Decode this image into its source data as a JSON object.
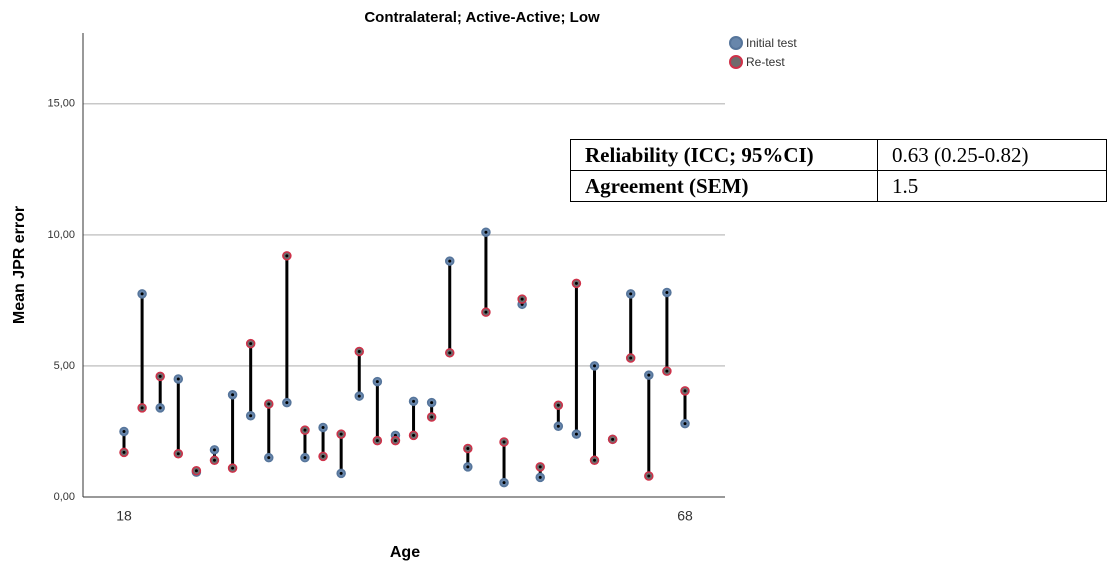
{
  "chart_data": {
    "type": "dumbbell",
    "title": "Contralateral; Active-Active; Low",
    "x_label": "Age",
    "y_label": "Mean JPR error",
    "categories": [
      "18",
      null,
      null,
      null,
      null,
      null,
      null,
      null,
      null,
      null,
      null,
      null,
      null,
      null,
      null,
      null,
      null,
      null,
      null,
      null,
      null,
      null,
      null,
      null,
      null,
      null,
      null,
      null,
      null,
      null,
      null,
      "68"
    ],
    "series": [
      {
        "name": "Initial test",
        "color": "#6886ab",
        "edgecolor": "#56759b",
        "values": [
          2.5,
          7.75,
          3.4,
          4.5,
          0.95,
          1.8,
          3.9,
          3.1,
          1.5,
          3.6,
          1.5,
          2.65,
          0.9,
          3.85,
          4.4,
          2.35,
          3.65,
          3.6,
          9.0,
          1.15,
          10.1,
          0.55,
          7.35,
          0.75,
          2.7,
          2.4,
          5.0,
          2.2,
          7.75,
          4.65,
          7.8,
          2.8
        ]
      },
      {
        "name": "Re-test",
        "color": "#6f6b6d",
        "edgecolor": "#cf3149",
        "values": [
          1.7,
          3.4,
          4.6,
          1.65,
          1.0,
          1.4,
          1.1,
          5.85,
          3.55,
          9.2,
          2.55,
          1.55,
          2.4,
          5.55,
          2.15,
          2.15,
          2.35,
          3.05,
          5.5,
          1.85,
          7.05,
          2.1,
          7.55,
          1.15,
          3.5,
          8.15,
          1.4,
          2.2,
          5.3,
          0.8,
          4.8,
          4.05
        ]
      }
    ],
    "ylim": [
      0,
      17.7
    ],
    "yticks": [
      {
        "value": 0,
        "label": "0,00"
      },
      {
        "value": 5,
        "label": "5,00"
      },
      {
        "value": 10,
        "label": "10,00"
      },
      {
        "value": 15,
        "label": "15,00"
      }
    ],
    "grid": true,
    "line_color": "#000000",
    "legend": "upper right",
    "annotation_table": {
      "rows": [
        [
          "Reliability (ICC; 95%CI)",
          "0.63 (0.25-0.82)"
        ],
        [
          "Agreement (SEM)",
          "1.5"
        ]
      ]
    }
  }
}
